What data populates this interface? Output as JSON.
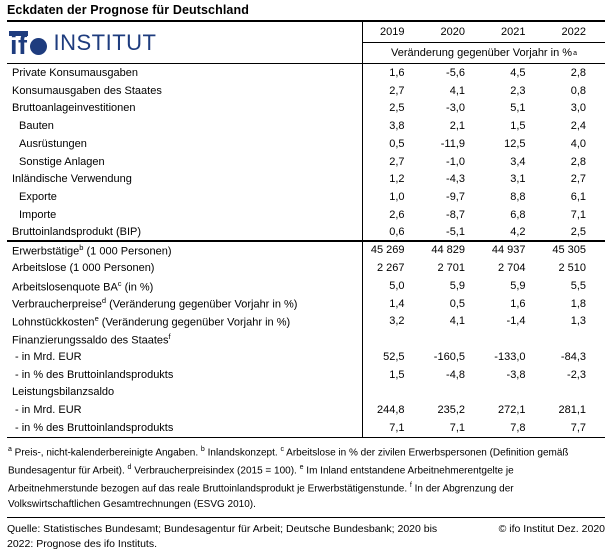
{
  "title": "Eckdaten der Prognose für Deutschland",
  "logo": {
    "mark_if": "if",
    "institut": "INSTITUT",
    "color": "#1e3c7e"
  },
  "colors": {
    "logo_blue": "#1e3c7e",
    "text": "#000000",
    "background": "#ffffff"
  },
  "table": {
    "years": [
      "2019",
      "2020",
      "2021",
      "2022"
    ],
    "subheader": "Veränderung gegenüber Vorjahr in %",
    "subheader_sup": "a",
    "rows": [
      {
        "label": "Private Konsumausgaben",
        "values": [
          "1,6",
          "-5,6",
          "4,5",
          "2,8"
        ]
      },
      {
        "label": "Konsumausgaben des Staates",
        "values": [
          "2,7",
          "4,1",
          "2,3",
          "0,8"
        ]
      },
      {
        "label": "Bruttoanlageinvestitionen",
        "values": [
          "2,5",
          "-3,0",
          "5,1",
          "3,0"
        ]
      },
      {
        "label": "Bauten",
        "indent": true,
        "values": [
          "3,8",
          "2,1",
          "1,5",
          "2,4"
        ]
      },
      {
        "label": "Ausrüstungen",
        "indent": true,
        "values": [
          "0,5",
          "-11,9",
          "12,5",
          "4,0"
        ]
      },
      {
        "label": "Sonstige Anlagen",
        "indent": true,
        "values": [
          "2,7",
          "-1,0",
          "3,4",
          "2,8"
        ]
      },
      {
        "label": "Inländische Verwendung",
        "values": [
          "1,2",
          "-4,3",
          "3,1",
          "2,7"
        ]
      },
      {
        "label": "Exporte",
        "indent": true,
        "values": [
          "1,0",
          "-9,7",
          "8,8",
          "6,1"
        ]
      },
      {
        "label": "Importe",
        "indent": true,
        "values": [
          "2,6",
          "-8,7",
          "6,8",
          "7,1"
        ]
      },
      {
        "label": "Bruttoinlandsprodukt (BIP)",
        "thick_below": true,
        "values": [
          "0,6",
          "-5,1",
          "4,2",
          "2,5"
        ]
      },
      {
        "label": "Erwerbstätige",
        "sup": "b",
        "after": " (1 000 Personen)",
        "values": [
          "45 269",
          "44 829",
          "44 937",
          "45 305"
        ]
      },
      {
        "label": "Arbeitslose (1 000 Personen)",
        "values": [
          "2 267",
          "2 701",
          "2 704",
          "2 510"
        ]
      },
      {
        "label": "Arbeitslosenquote BA",
        "sup": "c",
        "after": " (in %)",
        "values": [
          "5,0",
          "5,9",
          "5,9",
          "5,5"
        ]
      },
      {
        "label": "Verbraucherpreise",
        "sup": "d",
        "after": " (Veränderung gegenüber Vorjahr in %)",
        "values": [
          "1,4",
          "0,5",
          "1,6",
          "1,8"
        ]
      },
      {
        "label": "Lohnstückkosten",
        "sup": "e",
        "after": " (Veränderung gegenüber Vorjahr in %)",
        "values": [
          "3,2",
          "4,1",
          "-1,4",
          "1,3"
        ]
      },
      {
        "label": "Finanzierungssaldo des Staates",
        "sup": "f",
        "values": [
          "",
          "",
          "",
          ""
        ]
      },
      {
        "label": "- in Mrd. EUR",
        "dash": true,
        "values": [
          "52,5",
          "-160,5",
          "-133,0",
          "-84,3"
        ]
      },
      {
        "label": "- in % des Bruttoinlandsprodukts",
        "dash": true,
        "values": [
          "1,5",
          "-4,8",
          "-3,8",
          "-2,3"
        ]
      },
      {
        "label": "Leistungsbilanzsaldo",
        "values": [
          "",
          "",
          "",
          ""
        ]
      },
      {
        "label": "- in Mrd. EUR",
        "dash": true,
        "values": [
          "244,8",
          "235,2",
          "272,1",
          "281,1"
        ]
      },
      {
        "label": "- in % des Bruttoinlandsprodukts",
        "dash": true,
        "values": [
          "7,1",
          "7,1",
          "7,8",
          "7,7"
        ]
      }
    ]
  },
  "footnotes": [
    {
      "sup": "a",
      "text": "Preis-, nicht-kalenderbereinigte Angaben."
    },
    {
      "sup": "b",
      "text": "Inlandskonzept."
    },
    {
      "sup": "c",
      "text": "Arbeitslose in % der zivilen Erwerbspersonen (Definition gemäß Bundesagentur für Arbeit)."
    },
    {
      "sup": "d",
      "text": "Verbraucherpreisindex (2015 = 100)."
    },
    {
      "sup": "e",
      "text": "Im Inland entstandene Arbeitnehmerentgelte je Arbeitnehmerstunde bezogen auf das reale Bruttoinlandsprodukt je Erwerbstätigenstunde."
    },
    {
      "sup": "f",
      "text": "In der Abgrenzung der Volkswirtschaftlichen Gesamtrechnungen (ESVG 2010)."
    }
  ],
  "source": {
    "quelle": "Quelle: Statistisches Bundesamt; Bundesagentur für Arbeit; Deutsche Bundesbank; 2020 bis 2022: Prognose des ifo Instituts.",
    "copyright": "© ifo Institut Dez. 2020"
  }
}
